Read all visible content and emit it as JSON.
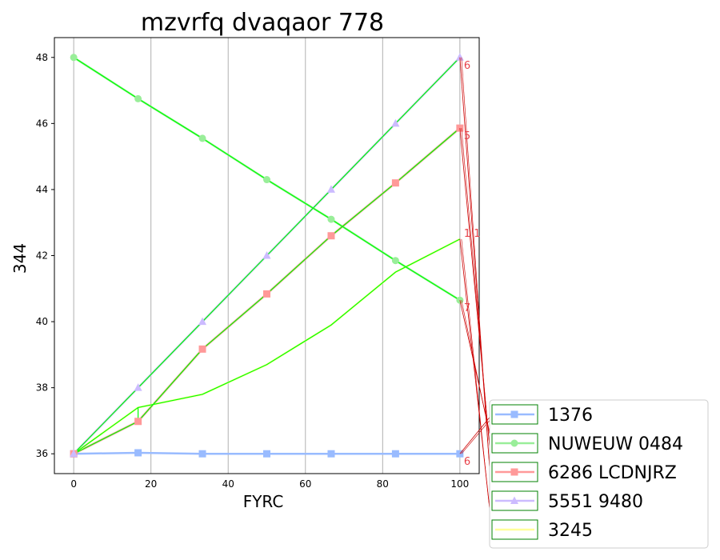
{
  "chart_data": {
    "type": "line",
    "title": "mzvrfq dvaqaor 778",
    "xlabel": "FYRC",
    "ylabel": "344",
    "xlim": [
      -5,
      105
    ],
    "ylim": [
      35.4,
      48.6
    ],
    "xticks": [
      0,
      20,
      40,
      60,
      80,
      100
    ],
    "yticks": [
      36,
      38,
      40,
      42,
      44,
      46,
      48
    ],
    "grid": "vertical",
    "legend_position": "lower-right-outside",
    "highlight_color": "#00ff00",
    "leader_color": "#cc0000",
    "x": [
      0,
      16.67,
      33.33,
      50,
      66.67,
      83.33,
      100
    ],
    "series": [
      {
        "name": "1376",
        "color": "#99bbff",
        "marker": "square",
        "values": [
          36.0,
          36.03,
          36.0,
          36.0,
          36.0,
          36.0,
          36.0
        ],
        "end_label": "6"
      },
      {
        "name": "NUWEUW 0484",
        "color": "#99ee99",
        "marker": "circle",
        "values": [
          48.0,
          46.75,
          45.55,
          44.3,
          43.1,
          41.85,
          40.65
        ],
        "end_label": "7"
      },
      {
        "name": "6286 LCDNJRZ",
        "color": "#ff9999",
        "marker": "square",
        "values": [
          36.0,
          36.98,
          39.17,
          40.84,
          42.6,
          44.2,
          45.86
        ],
        "end_label": "5"
      },
      {
        "name": "5551 9480",
        "color": "#ccbbff",
        "marker": "triangle",
        "values": [
          36.0,
          38.0,
          40.0,
          42.0,
          44.0,
          46.0,
          48.0
        ],
        "end_label": "6"
      },
      {
        "name": "3245",
        "color": "#ffff99",
        "marker": "none",
        "values": [
          36.0,
          37.4,
          37.8,
          38.7,
          39.9,
          41.5,
          42.5
        ],
        "end_label": "1 1"
      }
    ]
  }
}
